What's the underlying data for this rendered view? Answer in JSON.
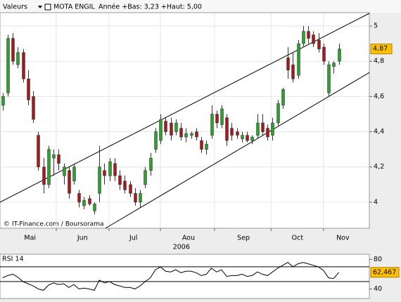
{
  "chart_data": {
    "type": "candlestick",
    "header": {
      "menu": "Valeurs",
      "name": "MOTA ENGIL",
      "range": "Année +Bas: 3,23 +Haut: 5,00"
    },
    "credit": "© IT-Finance.com / Boursorama",
    "year_label": {
      "value": 35.6,
      "label": "2006"
    },
    "xlim": [
      0,
      72.5
    ],
    "xticks": [
      11.05,
      21.4,
      31.5,
      42.1,
      53.2,
      63.5
    ],
    "month_labels": [
      {
        "value": 5.9,
        "label": "Mai"
      },
      {
        "value": 16.2,
        "label": "Jun"
      },
      {
        "value": 26.2,
        "label": "Jul"
      },
      {
        "value": 37,
        "label": "Aou"
      },
      {
        "value": 47.8,
        "label": "Sep"
      },
      {
        "value": 58.4,
        "label": "Oct"
      },
      {
        "value": 67.3,
        "label": "Nov"
      }
    ],
    "ylim": [
      3.852,
      5.076
    ],
    "yticks": [
      {
        "value": 4,
        "label": "4"
      },
      {
        "value": 4.2,
        "label": "4,2"
      },
      {
        "value": 4.4,
        "label": "4,4"
      },
      {
        "value": 4.6,
        "label": "4,6"
      },
      {
        "value": 4.8,
        "label": "4,8"
      },
      {
        "value": 5,
        "label": "5"
      }
    ],
    "grid": true,
    "up_color": "#2e9e2e",
    "down_color": "#a01c1c",
    "open": [
      4.55,
      4.62,
      4.93,
      4.78,
      4.85,
      4.7,
      4.6,
      4.38,
      4.2,
      4.1,
      4.25,
      4.27,
      4.15,
      4.18,
      4.12,
      4.05,
      3.98,
      4.02,
      3.95,
      4.05,
      4.18,
      4.15,
      4.22,
      4.15,
      4.12,
      4.1,
      4.05,
      4.0,
      4.1,
      4.18,
      4.3,
      4.35,
      4.46,
      4.45,
      4.4,
      4.42,
      4.37,
      4.38,
      4.4,
      4.35,
      4.3,
      4.38,
      4.5,
      4.44,
      4.48,
      4.42,
      4.4,
      4.36,
      4.38,
      4.35,
      4.38,
      4.45,
      4.42,
      4.38,
      4.45,
      4.55,
      4.82,
      4.78,
      4.72,
      4.9,
      4.97,
      4.95,
      4.92,
      4.88,
      4.62,
      4.77,
      4.8
    ],
    "high": [
      4.62,
      4.95,
      4.96,
      4.88,
      4.87,
      4.75,
      4.63,
      4.4,
      4.25,
      4.32,
      4.3,
      4.3,
      4.22,
      4.2,
      4.22,
      4.07,
      4.03,
      4.04,
      4.0,
      4.32,
      4.22,
      4.25,
      4.25,
      4.18,
      4.15,
      4.12,
      4.08,
      4.07,
      4.2,
      4.28,
      4.42,
      4.5,
      4.48,
      4.48,
      4.47,
      4.45,
      4.42,
      4.4,
      4.42,
      4.37,
      4.35,
      4.55,
      4.52,
      4.55,
      4.5,
      4.45,
      4.42,
      4.4,
      4.4,
      4.38,
      4.5,
      4.5,
      4.44,
      4.48,
      4.58,
      4.65,
      4.88,
      4.85,
      4.92,
      5.0,
      5.0,
      4.97,
      4.96,
      4.9,
      4.8,
      4.8,
      4.9
    ],
    "low": [
      4.52,
      4.6,
      4.78,
      4.76,
      4.68,
      4.55,
      4.45,
      4.18,
      4.05,
      4.08,
      4.15,
      4.18,
      4.1,
      4.02,
      4.1,
      3.97,
      3.96,
      3.98,
      3.93,
      4.0,
      4.1,
      4.12,
      4.12,
      4.07,
      4.05,
      4.03,
      3.98,
      3.97,
      4.08,
      4.15,
      4.28,
      4.33,
      4.38,
      4.35,
      4.38,
      4.35,
      4.34,
      4.36,
      4.35,
      4.28,
      4.27,
      4.36,
      4.42,
      4.42,
      4.32,
      4.35,
      4.36,
      4.34,
      4.34,
      4.33,
      4.36,
      4.38,
      4.35,
      4.35,
      4.43,
      4.53,
      4.7,
      4.68,
      4.7,
      4.88,
      4.9,
      4.88,
      4.85,
      4.78,
      4.6,
      4.73,
      4.78
    ],
    "close": [
      4.6,
      4.93,
      4.8,
      4.85,
      4.7,
      4.58,
      4.47,
      4.2,
      4.1,
      4.3,
      4.27,
      4.22,
      4.2,
      4.05,
      4.2,
      4.0,
      4.01,
      3.99,
      3.99,
      4.2,
      4.15,
      4.23,
      4.15,
      4.1,
      4.07,
      4.05,
      4.0,
      4.05,
      4.18,
      4.25,
      4.4,
      4.47,
      4.4,
      4.38,
      4.45,
      4.37,
      4.39,
      4.39,
      4.37,
      4.3,
      4.33,
      4.5,
      4.45,
      4.53,
      4.35,
      4.38,
      4.38,
      4.38,
      4.35,
      4.37,
      4.45,
      4.4,
      4.37,
      4.45,
      4.56,
      4.64,
      4.75,
      4.7,
      4.9,
      4.97,
      4.93,
      4.9,
      4.87,
      4.8,
      4.78,
      4.79,
      4.87
    ],
    "last_label": "4,87",
    "trendlines": [
      {
        "x": [
          0,
          72.5
        ],
        "y": [
          4.0,
          5.072
        ]
      },
      {
        "x": [
          20.7,
          72.5
        ],
        "y": [
          3.852,
          4.736
        ]
      }
    ],
    "rsi": {
      "title": "RSI 14",
      "ylim": [
        27,
        87
      ],
      "yticks": [
        40,
        80
      ],
      "levels": [
        70,
        50
      ],
      "color": "#000000",
      "values": [
        55,
        58,
        60,
        56,
        50,
        47,
        44,
        40,
        38,
        45,
        48,
        46,
        47,
        42,
        46,
        40,
        41,
        40,
        38,
        52,
        48,
        50,
        46,
        44,
        42,
        42,
        40,
        44,
        50,
        55,
        66,
        70,
        64,
        63,
        66,
        62,
        64,
        64,
        62,
        58,
        60,
        68,
        63,
        66,
        57,
        58,
        58,
        60,
        57,
        58,
        63,
        60,
        58,
        63,
        68,
        72,
        76,
        70,
        74,
        76,
        74,
        72,
        70,
        65,
        55,
        54,
        62.467
      ],
      "last_label": "62,467"
    }
  }
}
